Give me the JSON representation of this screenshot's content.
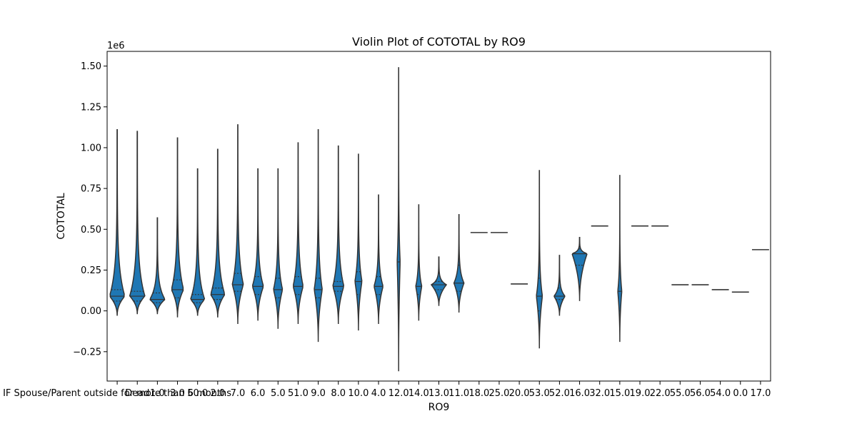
{
  "chart_data": {
    "type": "violin",
    "title": "Violin Plot of COTOTAL by RO9",
    "xlabel": "RO9",
    "ylabel": "COTOTAL",
    "y_scale_label": "1e6",
    "ylim": [
      -0.43,
      1.59
    ],
    "yticks": [
      -0.25,
      0.0,
      0.25,
      0.5,
      0.75,
      1.0,
      1.25,
      1.5
    ],
    "ytick_labels": [
      "−0.25",
      "0.00",
      "0.25",
      "0.50",
      "0.75",
      "1.00",
      "1.25",
      "1.50"
    ],
    "color": "#1f77b4",
    "edge_color": "#333333",
    "categories": [
      "IF Spouse/Parent outside for more than 6 months",
      "Dead",
      "1.0",
      "3.0",
      "50.0",
      "2.0",
      "7.0",
      "6.0",
      "5.0",
      "51.0",
      "9.0",
      "8.0",
      "10.0",
      "4.0",
      "12.0",
      "14.0",
      "13.0",
      "11.0",
      "18.0",
      "25.0",
      "20.0",
      "53.0",
      "52.0",
      "16.0",
      "32.0",
      "15.0",
      "19.0",
      "22.0",
      "55.0",
      "56.0",
      "54.0",
      "0.0",
      "17.0"
    ],
    "tick_labels": [
      "IF Spouse/Parent outside for more than 6 months",
      "Dead",
      "1.0",
      "3.0",
      "50.0",
      "2.0",
      "7.0",
      "6.0",
      "5.0",
      "51.0",
      "9.0",
      "8.0",
      "10.0",
      "4.0",
      "12.0",
      "14.0",
      "13.0",
      "11.0",
      "18.0",
      "25.0",
      "20.0",
      "53.0",
      "52.0",
      "16.0",
      "32.0",
      "15.0",
      "19.0",
      "22.0",
      "55.0",
      "56.0",
      "54.0",
      "0.0",
      "17.0"
    ],
    "violins": [
      {
        "min": -0.03,
        "max": 1.11,
        "q1": 0.06,
        "median": 0.09,
        "q3": 0.13,
        "width": 0.75
      },
      {
        "min": -0.02,
        "max": 1.1,
        "q1": 0.06,
        "median": 0.09,
        "q3": 0.12,
        "width": 0.75
      },
      {
        "min": -0.02,
        "max": 0.57,
        "q1": 0.05,
        "median": 0.07,
        "q3": 0.11,
        "width": 0.75
      },
      {
        "min": -0.04,
        "max": 1.06,
        "q1": 0.08,
        "median": 0.13,
        "q3": 0.19,
        "width": 0.6
      },
      {
        "min": -0.03,
        "max": 0.87,
        "q1": 0.05,
        "median": 0.07,
        "q3": 0.1,
        "width": 0.7
      },
      {
        "min": -0.04,
        "max": 0.99,
        "q1": 0.07,
        "median": 0.1,
        "q3": 0.14,
        "width": 0.7
      },
      {
        "min": -0.08,
        "max": 1.14,
        "q1": 0.12,
        "median": 0.16,
        "q3": 0.23,
        "width": 0.55
      },
      {
        "min": -0.06,
        "max": 0.87,
        "q1": 0.1,
        "median": 0.15,
        "q3": 0.21,
        "width": 0.55
      },
      {
        "min": -0.11,
        "max": 0.87,
        "q1": 0.08,
        "median": 0.13,
        "q3": 0.2,
        "width": 0.45
      },
      {
        "min": -0.08,
        "max": 1.03,
        "q1": 0.1,
        "median": 0.15,
        "q3": 0.21,
        "width": 0.5
      },
      {
        "min": -0.19,
        "max": 1.11,
        "q1": 0.08,
        "median": 0.13,
        "q3": 0.2,
        "width": 0.4
      },
      {
        "min": -0.08,
        "max": 1.01,
        "q1": 0.12,
        "median": 0.15,
        "q3": 0.18,
        "width": 0.55
      },
      {
        "min": -0.12,
        "max": 0.96,
        "q1": 0.1,
        "median": 0.18,
        "q3": 0.24,
        "width": 0.35
      },
      {
        "min": -0.08,
        "max": 0.71,
        "q1": 0.1,
        "median": 0.15,
        "q3": 0.21,
        "width": 0.45
      },
      {
        "min": -0.37,
        "max": 1.49,
        "q1": 0.05,
        "median": 0.3,
        "q3": 0.8,
        "width": 0.15
      },
      {
        "min": -0.06,
        "max": 0.65,
        "q1": 0.1,
        "median": 0.15,
        "q3": 0.3,
        "width": 0.3
      },
      {
        "min": 0.03,
        "max": 0.33,
        "q1": 0.13,
        "median": 0.16,
        "q3": 0.18,
        "width": 0.75
      },
      {
        "min": -0.01,
        "max": 0.59,
        "q1": 0.12,
        "median": 0.17,
        "q3": 0.28,
        "width": 0.5
      },
      {
        "min": 0.48,
        "max": 0.48,
        "q1": 0.48,
        "median": 0.48,
        "q3": 0.48,
        "width": 0.85
      },
      {
        "min": 0.48,
        "max": 0.48,
        "q1": 0.48,
        "median": 0.48,
        "q3": 0.48,
        "width": 0.85
      },
      {
        "min": 0.165,
        "max": 0.165,
        "q1": 0.165,
        "median": 0.165,
        "q3": 0.165,
        "width": 0.85
      },
      {
        "min": -0.23,
        "max": 0.86,
        "q1": 0.0,
        "median": 0.09,
        "q3": 0.2,
        "width": 0.3
      },
      {
        "min": -0.03,
        "max": 0.34,
        "q1": 0.07,
        "median": 0.09,
        "q3": 0.14,
        "width": 0.55
      },
      {
        "min": 0.06,
        "max": 0.45,
        "q1": 0.28,
        "median": 0.35,
        "q3": 0.38,
        "width": 0.75
      },
      {
        "min": 0.52,
        "max": 0.52,
        "q1": 0.52,
        "median": 0.52,
        "q3": 0.52,
        "width": 0.85
      },
      {
        "min": -0.19,
        "max": 0.83,
        "q1": 0.0,
        "median": 0.12,
        "q3": 0.4,
        "width": 0.2
      },
      {
        "min": 0.52,
        "max": 0.52,
        "q1": 0.52,
        "median": 0.52,
        "q3": 0.52,
        "width": 0.85
      },
      {
        "min": 0.52,
        "max": 0.52,
        "q1": 0.52,
        "median": 0.52,
        "q3": 0.52,
        "width": 0.85
      },
      {
        "min": 0.16,
        "max": 0.16,
        "q1": 0.16,
        "median": 0.16,
        "q3": 0.16,
        "width": 0.85
      },
      {
        "min": 0.16,
        "max": 0.16,
        "q1": 0.16,
        "median": 0.16,
        "q3": 0.16,
        "width": 0.85
      },
      {
        "min": 0.13,
        "max": 0.13,
        "q1": 0.13,
        "median": 0.13,
        "q3": 0.13,
        "width": 0.85
      },
      {
        "min": 0.115,
        "max": 0.115,
        "q1": 0.115,
        "median": 0.115,
        "q3": 0.115,
        "width": 0.85
      },
      {
        "min": 0.375,
        "max": 0.375,
        "q1": 0.375,
        "median": 0.375,
        "q3": 0.375,
        "width": 0.85
      }
    ]
  }
}
